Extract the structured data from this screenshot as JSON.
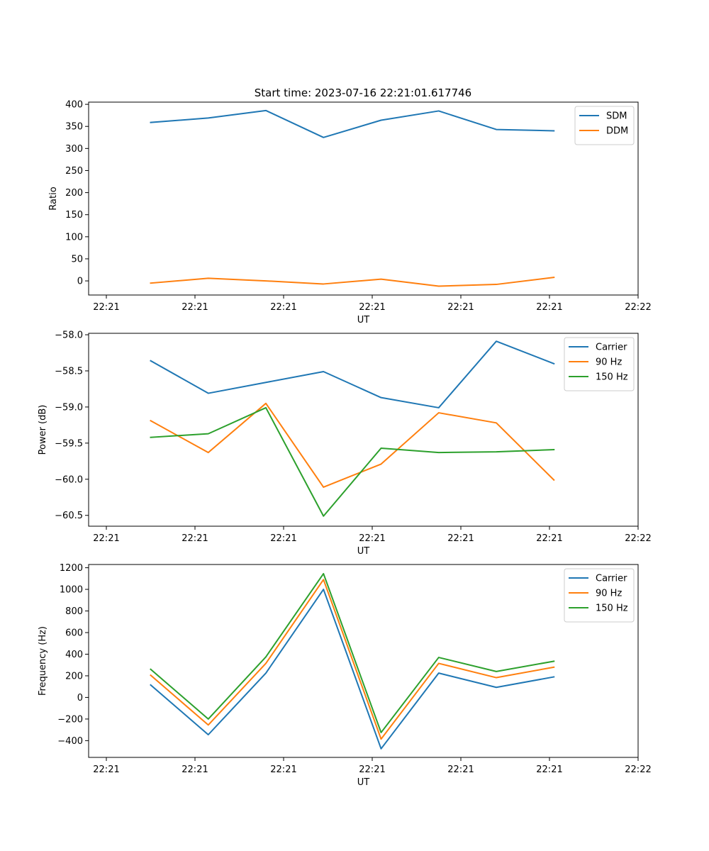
{
  "title": "Start time: 2023-07-16 22:21:01.617746",
  "colors": {
    "blue": "#1f77b4",
    "orange": "#ff7f0e",
    "green": "#2ca02c"
  },
  "chart_data": [
    {
      "type": "line",
      "xlabel": "UT",
      "ylabel": "Ratio",
      "x_ticks": [
        "22:21",
        "22:21",
        "22:21",
        "22:21",
        "22:21",
        "22:21",
        "22:22"
      ],
      "y_ticks": [
        0,
        50,
        100,
        150,
        200,
        250,
        300,
        350,
        400
      ],
      "ylim": [
        -32,
        405
      ],
      "legend": "top-right",
      "x": [
        0.5,
        1.15,
        1.8,
        2.45,
        3.1,
        3.75,
        4.4,
        5.05
      ],
      "series": [
        {
          "name": "SDM",
          "color": "blue",
          "values": [
            359,
            369,
            386,
            325,
            364,
            385,
            343,
            340
          ]
        },
        {
          "name": "DDM",
          "color": "orange",
          "values": [
            -5,
            6,
            0,
            -7,
            4,
            -12,
            -8,
            8
          ]
        }
      ]
    },
    {
      "type": "line",
      "xlabel": "UT",
      "ylabel": "Power (dB)",
      "x_ticks": [
        "22:21",
        "22:21",
        "22:21",
        "22:21",
        "22:21",
        "22:21",
        "22:22"
      ],
      "y_ticks": [
        "−60.5",
        "−60.0",
        "−59.5",
        "−59.0",
        "−58.5",
        "−58.0"
      ],
      "y_tick_values": [
        -60.5,
        -60.0,
        -59.5,
        -59.0,
        -58.5,
        -58.0
      ],
      "ylim": [
        -60.65,
        -57.98
      ],
      "legend": "top-right",
      "x": [
        0.5,
        1.15,
        1.8,
        2.45,
        3.1,
        3.75,
        4.4,
        5.05
      ],
      "series": [
        {
          "name": "Carrier",
          "color": "blue",
          "values": [
            -58.36,
            -58.81,
            -58.66,
            -58.51,
            -58.87,
            -59.01,
            -58.09,
            -58.4
          ]
        },
        {
          "name": "90 Hz",
          "color": "orange",
          "values": [
            -59.19,
            -59.63,
            -58.95,
            -60.11,
            -59.79,
            -59.08,
            -59.22,
            -60.01
          ]
        },
        {
          "name": "150 Hz",
          "color": "green",
          "values": [
            -59.42,
            -59.37,
            -59.01,
            -60.51,
            -59.57,
            -59.63,
            -59.62,
            -59.59
          ]
        }
      ]
    },
    {
      "type": "line",
      "xlabel": "UT",
      "ylabel": "Frequency (Hz)",
      "x_ticks": [
        "22:21",
        "22:21",
        "22:21",
        "22:21",
        "22:21",
        "22:21",
        "22:22"
      ],
      "y_ticks": [
        "−400",
        "−200",
        "0",
        "200",
        "400",
        "600",
        "800",
        "1000",
        "1200"
      ],
      "y_tick_values": [
        -400,
        -200,
        0,
        200,
        400,
        600,
        800,
        1000,
        1200
      ],
      "ylim": [
        -555,
        1230
      ],
      "legend": "top-right",
      "x": [
        0.5,
        1.15,
        1.8,
        2.45,
        3.1,
        3.75,
        4.4,
        5.05
      ],
      "series": [
        {
          "name": "Carrier",
          "color": "blue",
          "values": [
            115,
            -345,
            225,
            1000,
            -475,
            225,
            93,
            190
          ]
        },
        {
          "name": "90 Hz",
          "color": "orange",
          "values": [
            205,
            -255,
            315,
            1090,
            -385,
            315,
            183,
            280
          ]
        },
        {
          "name": "150 Hz",
          "color": "green",
          "values": [
            260,
            -200,
            375,
            1145,
            -325,
            370,
            240,
            335
          ]
        }
      ]
    }
  ]
}
